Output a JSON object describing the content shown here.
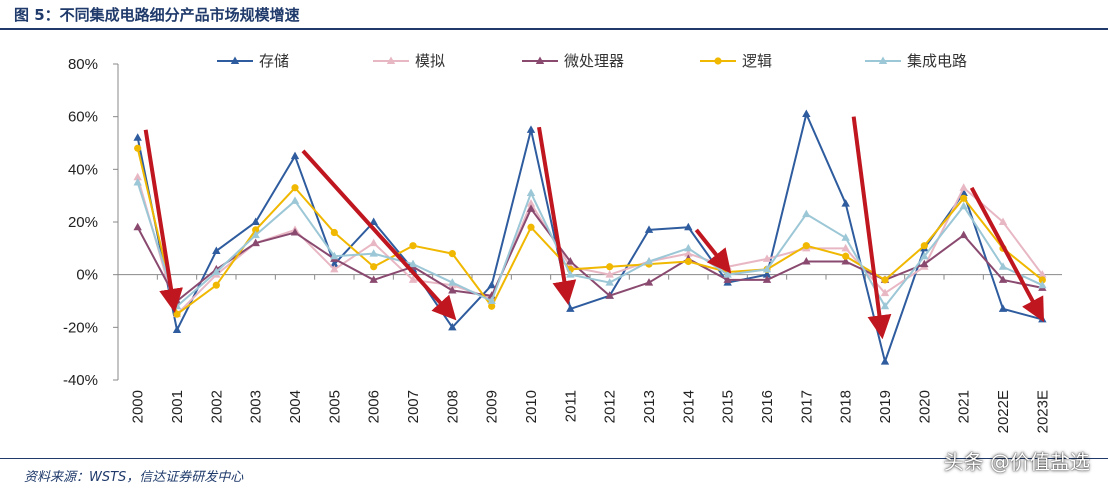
{
  "title": "图 5：不同集成电路细分产品市场规模增速",
  "source": "资料来源：WSTS，信达证券研发中心",
  "watermark": "头条 @价值盐选",
  "chart_data": {
    "type": "line",
    "title": "图 5：不同集成电路细分产品市场规模增速",
    "xlabel": "",
    "ylabel": "",
    "ylim": [
      -40,
      80
    ],
    "yticks": [
      -40,
      -20,
      0,
      20,
      40,
      60,
      80
    ],
    "ytick_labels": [
      "-40%",
      "-20%",
      "0%",
      "20%",
      "40%",
      "60%",
      "80%"
    ],
    "categories": [
      "2000",
      "2001",
      "2002",
      "2003",
      "2004",
      "2005",
      "2006",
      "2007",
      "2008",
      "2009",
      "2010",
      "2011",
      "2012",
      "2013",
      "2014",
      "2015",
      "2016",
      "2017",
      "2018",
      "2019",
      "2020",
      "2021",
      "2022E",
      "2023E"
    ],
    "legend_position": "top",
    "series": [
      {
        "name": "存储",
        "color": "#2e5c9e",
        "marker": "triangle",
        "values": [
          52,
          -21,
          9,
          20,
          45,
          4,
          20,
          2,
          -20,
          -4,
          55,
          -13,
          -8,
          17,
          18,
          -3,
          0,
          61,
          27,
          -33,
          10,
          31,
          -13,
          -17
        ]
      },
      {
        "name": "模拟",
        "color": "#e8b7c4",
        "marker": "triangle",
        "values": [
          37,
          -15,
          0,
          12,
          17,
          2,
          12,
          -2,
          -4,
          -9,
          27,
          3,
          0,
          5,
          8,
          3,
          6,
          10,
          10,
          -7,
          3,
          33,
          20,
          0
        ]
      },
      {
        "name": "微处理器",
        "color": "#8a4a70",
        "marker": "triangle",
        "values": [
          18,
          -10,
          2,
          12,
          16,
          6,
          -2,
          3,
          -6,
          -8,
          25,
          5,
          -8,
          -3,
          6,
          -2,
          -2,
          5,
          5,
          -2,
          4,
          15,
          -2,
          -5
        ]
      },
      {
        "name": "逻辑",
        "color": "#f0b800",
        "marker": "circle",
        "values": [
          48,
          -15,
          -4,
          17,
          33,
          16,
          3,
          11,
          8,
          -12,
          18,
          2,
          3,
          4,
          5,
          1,
          2,
          11,
          7,
          -2,
          11,
          29,
          10,
          -2
        ]
      },
      {
        "name": "集成电路",
        "color": "#9cc7d6",
        "marker": "triangle",
        "values": [
          35,
          -12,
          1,
          15,
          28,
          7,
          8,
          4,
          -3,
          -10,
          31,
          0,
          -3,
          5,
          10,
          0,
          2,
          23,
          14,
          -12,
          7,
          26,
          3,
          -4
        ]
      }
    ],
    "arrows": [
      {
        "from": [
          "2000",
          55
        ],
        "to": [
          "2001",
          -10
        ]
      },
      {
        "from": [
          "2004",
          47
        ],
        "to": [
          "2008",
          -14
        ]
      },
      {
        "from": [
          "2010",
          56
        ],
        "to": [
          "2011",
          -7
        ]
      },
      {
        "from": [
          "2014",
          17
        ],
        "to": [
          "2015",
          4
        ]
      },
      {
        "from": [
          "2018",
          60
        ],
        "to": [
          "2019",
          -20
        ]
      },
      {
        "from": [
          "2021",
          33
        ],
        "to": [
          "2023E",
          -14
        ]
      }
    ],
    "arrow_color": "#c0161f"
  }
}
